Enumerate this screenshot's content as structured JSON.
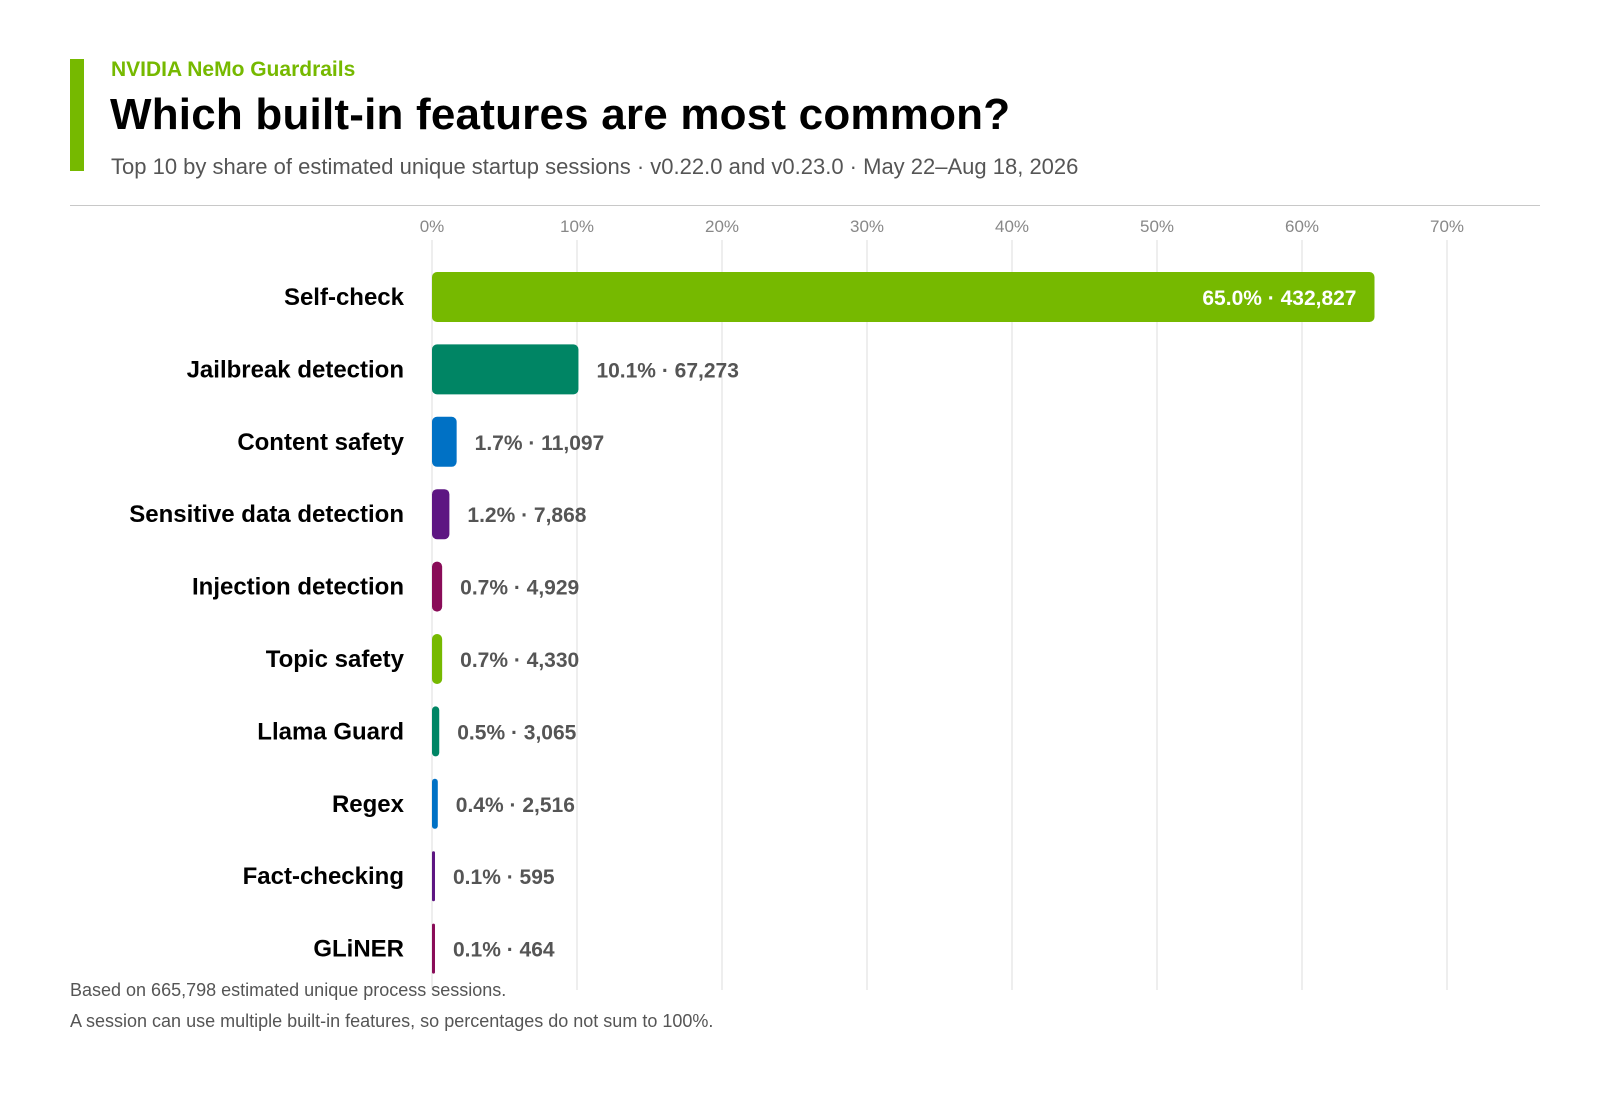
{
  "header": {
    "brand": "NVIDIA NeMo Guardrails",
    "title": "Which built-in features are most common?",
    "subtitle": "Top 10 by share of estimated unique startup sessions · v0.22.0 and v0.23.0 · May 22–Aug 18, 2026"
  },
  "colors": {
    "brand": "#76b900",
    "title_text": "#000000",
    "muted_text": "#555555",
    "grid": "#dddddd"
  },
  "chart_data": {
    "type": "bar",
    "orientation": "horizontal",
    "title": "Which built-in features are most common?",
    "xlabel": "",
    "ylabel": "",
    "xlim": [
      0,
      70
    ],
    "x_ticks": [
      "0%",
      "10%",
      "20%",
      "30%",
      "40%",
      "50%",
      "60%",
      "70%"
    ],
    "grid": true,
    "categories": [
      "Self-check",
      "Jailbreak detection",
      "Content safety",
      "Sensitive data detection",
      "Injection detection",
      "Topic safety",
      "Llama Guard",
      "Regex",
      "Fact-checking",
      "GLiNER"
    ],
    "values": [
      65.0,
      10.1,
      1.7,
      1.2,
      0.7,
      0.7,
      0.5,
      0.4,
      0.1,
      0.1
    ],
    "sessions": [
      432827,
      67273,
      11097,
      7868,
      4929,
      4330,
      3065,
      2516,
      595,
      464
    ],
    "data_labels": [
      "65.0% · 432,827",
      "10.1% · 67,273",
      "1.7% · 11,097",
      "1.2% · 7,868",
      "0.7% · 4,929",
      "0.7% · 4,330",
      "0.5% · 3,065",
      "0.4% · 2,516",
      "0.1% · 595",
      "0.1% · 464"
    ],
    "bar_colors": [
      "#76b900",
      "#008564",
      "#0071c5",
      "#5d1682",
      "#890c58",
      "#76b900",
      "#008564",
      "#0071c5",
      "#5d1682",
      "#890c58"
    ]
  },
  "footnotes": [
    "Based on 665,798 estimated unique process sessions.",
    "A session can use multiple built-in features, so percentages do not sum to 100%."
  ]
}
